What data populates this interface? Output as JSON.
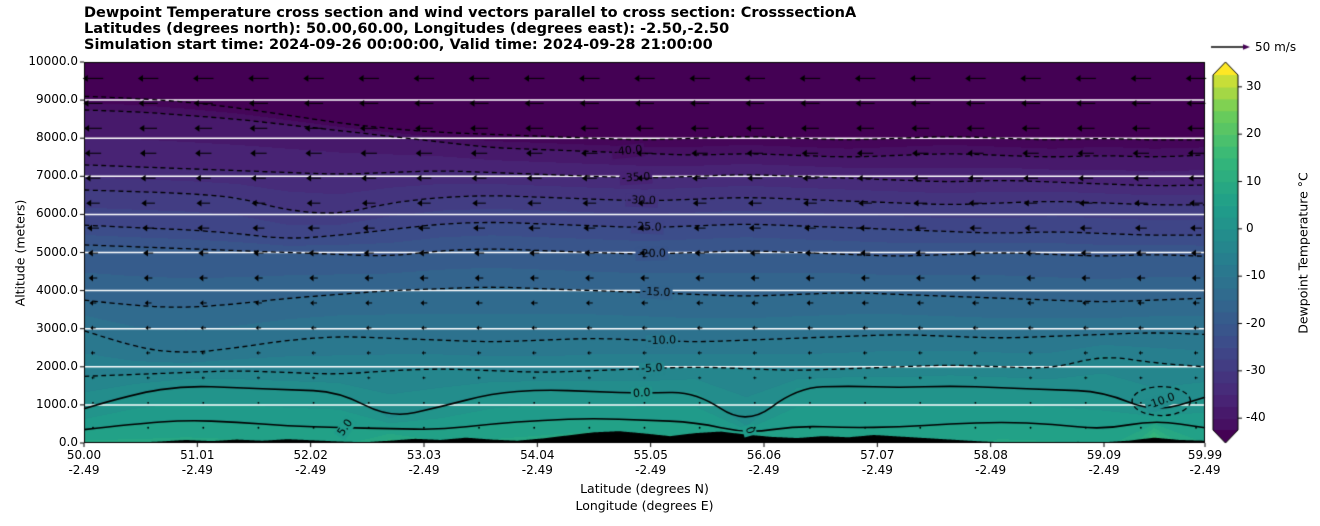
{
  "title": {
    "line1": "Dewpoint Temperature cross section and wind vectors parallel to cross section: CrosssectionA",
    "line2": "Latitudes (degrees north): 50.00,60.00, Longitudes (degrees east): -2.50,-2.50",
    "line3": "Simulation start time: 2024-09-26 00:00:00, Valid time: 2024-09-28 21:00:00"
  },
  "axes": {
    "y_label": "Altitude (meters)",
    "x_label_line1": "Latitude (degrees N)",
    "x_label_line2": "Longitude (degrees E)",
    "y_ticks": [
      {
        "label": "0.0",
        "value_m": 0
      },
      {
        "label": "1000.0",
        "value_m": 1000
      },
      {
        "label": "2000.0",
        "value_m": 2000
      },
      {
        "label": "3000.0",
        "value_m": 3000
      },
      {
        "label": "4000.0",
        "value_m": 4000
      },
      {
        "label": "5000.0",
        "value_m": 5000
      },
      {
        "label": "6000.0",
        "value_m": 6000
      },
      {
        "label": "7000.0",
        "value_m": 7000
      },
      {
        "label": "8000.0",
        "value_m": 8000
      },
      {
        "label": "9000.0",
        "value_m": 9000
      },
      {
        "label": "10000.0",
        "value_m": 10000
      }
    ],
    "x_ticks": [
      {
        "lat_label": "50.00",
        "lon_label": "-2.49",
        "lat_value": 50.0
      },
      {
        "lat_label": "51.01",
        "lon_label": "-2.49",
        "lat_value": 51.01
      },
      {
        "lat_label": "52.02",
        "lon_label": "-2.49",
        "lat_value": 52.02
      },
      {
        "lat_label": "53.03",
        "lon_label": "-2.49",
        "lat_value": 53.03
      },
      {
        "lat_label": "54.04",
        "lon_label": "-2.49",
        "lat_value": 54.04
      },
      {
        "lat_label": "55.05",
        "lon_label": "-2.49",
        "lat_value": 55.05
      },
      {
        "lat_label": "56.06",
        "lon_label": "-2.49",
        "lat_value": 56.06
      },
      {
        "lat_label": "57.07",
        "lon_label": "-2.49",
        "lat_value": 57.07
      },
      {
        "lat_label": "58.08",
        "lon_label": "-2.49",
        "lat_value": 58.08
      },
      {
        "lat_label": "59.09",
        "lon_label": "-2.49",
        "lat_value": 59.09
      },
      {
        "lat_label": "59.99",
        "lon_label": "-2.49",
        "lat_value": 59.99
      }
    ]
  },
  "colorbar": {
    "label": "Dewpoint Temperature °C",
    "ticks": [
      {
        "label": "30",
        "value": 30
      },
      {
        "label": "20",
        "value": 20
      },
      {
        "label": "10",
        "value": 10
      },
      {
        "label": "0",
        "value": 0
      },
      {
        "label": "-10",
        "value": -10
      },
      {
        "label": "-20",
        "value": -20
      },
      {
        "label": "-30",
        "value": -30
      },
      {
        "label": "-40",
        "value": -40
      }
    ]
  },
  "quiver_key": {
    "label": "50 m/s",
    "reference_ms": 50
  },
  "chart_data": {
    "type": "contour",
    "title": "Dewpoint Temperature cross section and wind vectors parallel to cross section: CrosssectionA",
    "x_name": "Latitude (degrees N)",
    "y_name": "Altitude (meters)",
    "z_name": "Dewpoint Temperature (C)",
    "x_range_deg": [
      50.0,
      59.99
    ],
    "y_range_m": [
      0,
      10000
    ],
    "x_grid": [
      50.0,
      50.45,
      50.91,
      51.36,
      51.82,
      52.27,
      52.72,
      53.18,
      53.63,
      54.09,
      54.54,
      54.99,
      55.45,
      55.9,
      56.36,
      56.81,
      57.26,
      57.72,
      58.17,
      58.63,
      59.08,
      59.54,
      59.99
    ],
    "contours": [
      {
        "level_c": 5,
        "style": "solid",
        "altitudes_m": [
          350,
          500,
          600,
          550,
          450,
          400,
          380,
          350,
          500,
          600,
          650,
          600,
          550,
          250,
          450,
          400,
          420,
          500,
          550,
          500,
          350,
          600,
          400
        ]
      },
      {
        "level_c": 0,
        "style": "solid",
        "altitudes_m": [
          900,
          1300,
          1500,
          1450,
          1400,
          1350,
          650,
          950,
          1300,
          1400,
          1350,
          1300,
          1350,
          450,
          1450,
          1500,
          1450,
          1500,
          1450,
          1400,
          1350,
          800,
          1200
        ]
      },
      {
        "level_c": -5,
        "style": "dashed",
        "altitudes_m": [
          1750,
          1800,
          1850,
          1900,
          1850,
          1800,
          1900,
          1950,
          1900,
          1850,
          1900,
          1950,
          2000,
          1950,
          1900,
          1950,
          2000,
          2050,
          2000,
          1950,
          2300,
          2100,
          2000
        ]
      },
      {
        "level_c": -10,
        "style": "dashed",
        "altitudes_m": [
          2950,
          2500,
          2350,
          2500,
          2700,
          2800,
          2750,
          2700,
          2650,
          2700,
          2750,
          2700,
          2650,
          2700,
          2750,
          2800,
          2850,
          2800,
          2750,
          2800,
          2850,
          2900,
          2850
        ]
      },
      {
        "level_c": -15,
        "style": "dashed",
        "altitudes_m": [
          3750,
          3600,
          3550,
          3650,
          3800,
          3900,
          4000,
          4050,
          4100,
          4050,
          4000,
          3950,
          3900,
          3850,
          3900,
          3950,
          3900,
          3850,
          3800,
          3750,
          3700,
          3750,
          3800
        ]
      },
      {
        "level_c": -20,
        "style": "dashed",
        "altitudes_m": [
          5200,
          5150,
          5100,
          5050,
          5000,
          4950,
          4900,
          5050,
          5100,
          5050,
          5000,
          4950,
          5000,
          5050,
          5000,
          4950,
          4900,
          4950,
          5000,
          4950,
          4900,
          4950,
          4900
        ]
      },
      {
        "level_c": -25,
        "style": "dashed",
        "altitudes_m": [
          5720,
          5650,
          5600,
          5500,
          5350,
          5450,
          5600,
          5750,
          5800,
          5750,
          5700,
          5650,
          5700,
          5750,
          5700,
          5650,
          5600,
          5550,
          5500,
          5550,
          5500,
          5450,
          5460
        ]
      },
      {
        "level_c": -30,
        "style": "dashed",
        "altitudes_m": [
          6640,
          6600,
          6550,
          6450,
          6100,
          6000,
          6300,
          6450,
          6500,
          6450,
          6400,
          6350,
          6400,
          6450,
          6400,
          6350,
          6300,
          6250,
          6300,
          6350,
          6300,
          6250,
          6250
        ]
      },
      {
        "level_c": -35,
        "style": "dashed",
        "altitudes_m": [
          7300,
          7250,
          7200,
          7150,
          7100,
          7050,
          7100,
          7150,
          7100,
          7050,
          7000,
          6950,
          7000,
          7050,
          7000,
          6950,
          6900,
          6850,
          6900,
          6850,
          6800,
          6750,
          6770
        ]
      },
      {
        "level_c": -40,
        "style": "dashed",
        "altitudes_m": [
          8740,
          8700,
          8600,
          8500,
          8350,
          8200,
          8050,
          7900,
          7750,
          7700,
          7650,
          7600,
          7550,
          7600,
          7550,
          7500,
          7550,
          7600,
          7550,
          7500,
          7550,
          7500,
          7560
        ]
      },
      {
        "level_c": -45,
        "style": "dashed",
        "altitudes_m": [
          9100,
          9050,
          8950,
          8800,
          8600,
          8400,
          8250,
          8150,
          8100,
          8050,
          8000,
          7950,
          8000,
          8050,
          8000,
          7950,
          8000,
          8050,
          8000,
          7950,
          8000,
          7950,
          7960
        ]
      }
    ],
    "extra_closed_contours": [
      {
        "level_c": -10,
        "center_lat": 59.6,
        "center_alt_m": 1100,
        "rx_lat": 0.26,
        "ry_m": 380
      }
    ],
    "contour_labels": [
      {
        "text": "-40.0",
        "lat": 54.85,
        "alt_m": 7660,
        "rot_deg": -6
      },
      {
        "text": "-35.0",
        "lat": 54.92,
        "alt_m": 6960,
        "rot_deg": -3
      },
      {
        "text": "-30.0",
        "lat": 54.97,
        "alt_m": 6360,
        "rot_deg": 2
      },
      {
        "text": "-25.0",
        "lat": 55.02,
        "alt_m": 5660,
        "rot_deg": 2
      },
      {
        "text": "-20.0",
        "lat": 55.06,
        "alt_m": 4960,
        "rot_deg": -2
      },
      {
        "text": "-15.0",
        "lat": 55.1,
        "alt_m": 3950,
        "rot_deg": 3
      },
      {
        "text": "-10.0",
        "lat": 55.15,
        "alt_m": 2680,
        "rot_deg": -2
      },
      {
        "text": "-5.0",
        "lat": 55.06,
        "alt_m": 1950,
        "rot_deg": -3
      },
      {
        "text": "0.0",
        "lat": 54.97,
        "alt_m": 1300,
        "rot_deg": -4
      },
      {
        "text": "5.0",
        "lat": 52.33,
        "alt_m": 400,
        "rot_deg": -55
      },
      {
        "text": "-10.0",
        "lat": 59.6,
        "alt_m": 1090,
        "rot_deg": -20
      },
      {
        "text": "0",
        "lat": 55.93,
        "alt_m": 330,
        "rot_deg": 75
      }
    ],
    "terrain_altitudes_m": [
      0,
      0,
      10,
      40,
      80,
      50,
      90,
      60,
      100,
      70,
      40,
      20,
      60,
      110,
      80,
      140,
      90,
      60,
      120,
      200,
      280,
      310,
      250,
      180,
      260,
      300,
      220,
      160,
      130,
      180,
      150,
      210,
      170,
      130,
      90,
      50,
      20,
      0,
      10,
      30,
      20,
      60,
      140,
      80,
      60
    ],
    "fill": {
      "vmin_c": -45,
      "vmax_c": 35,
      "band_step_c": 2.5,
      "colormap": "viridis",
      "viridis_stops": [
        "#440154",
        "#482878",
        "#3e4989",
        "#31688e",
        "#26828e",
        "#1f9e89",
        "#35b779",
        "#6ece58",
        "#fde725"
      ]
    },
    "wind": {
      "direction": "toward lower latitude (arrows point left)",
      "reference_ms": 50,
      "columns": 21,
      "col_lat_start": 50.08,
      "col_lat_end": 59.91,
      "row_altitudes_m": [
        400,
        1055,
        1710,
        2365,
        3020,
        3675,
        4330,
        4985,
        5640,
        6295,
        6950,
        7605,
        8260,
        8915,
        9570
      ],
      "row_speeds_ms": [
        2,
        3,
        4.5,
        6,
        8,
        10,
        12.5,
        15,
        17.5,
        20,
        22,
        24,
        26,
        28,
        30
      ]
    }
  }
}
